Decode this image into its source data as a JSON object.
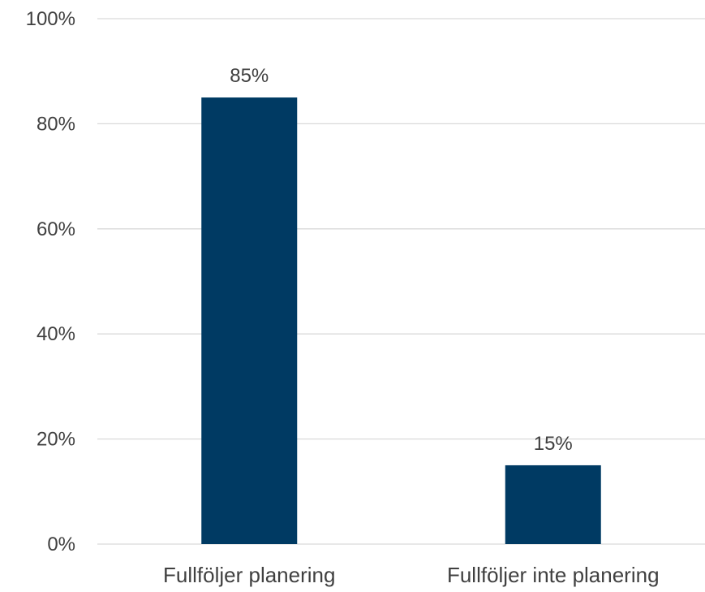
{
  "chart_data": {
    "type": "bar",
    "categories": [
      "Fullföljer planering",
      "Fullföljer inte planering"
    ],
    "values": [
      85,
      15
    ],
    "data_labels": [
      "85%",
      "15%"
    ],
    "title": "",
    "xlabel": "",
    "ylabel": "",
    "ylim": [
      0,
      100
    ],
    "y_ticks": [
      0,
      20,
      40,
      60,
      80,
      100
    ],
    "y_tick_labels": [
      "0%",
      "20%",
      "40%",
      "60%",
      "80%",
      "100%"
    ],
    "grid": true,
    "legend": "none",
    "colors": {
      "bar": "#003A63",
      "gridline": "#D9D9D9",
      "text": "#404040"
    }
  }
}
